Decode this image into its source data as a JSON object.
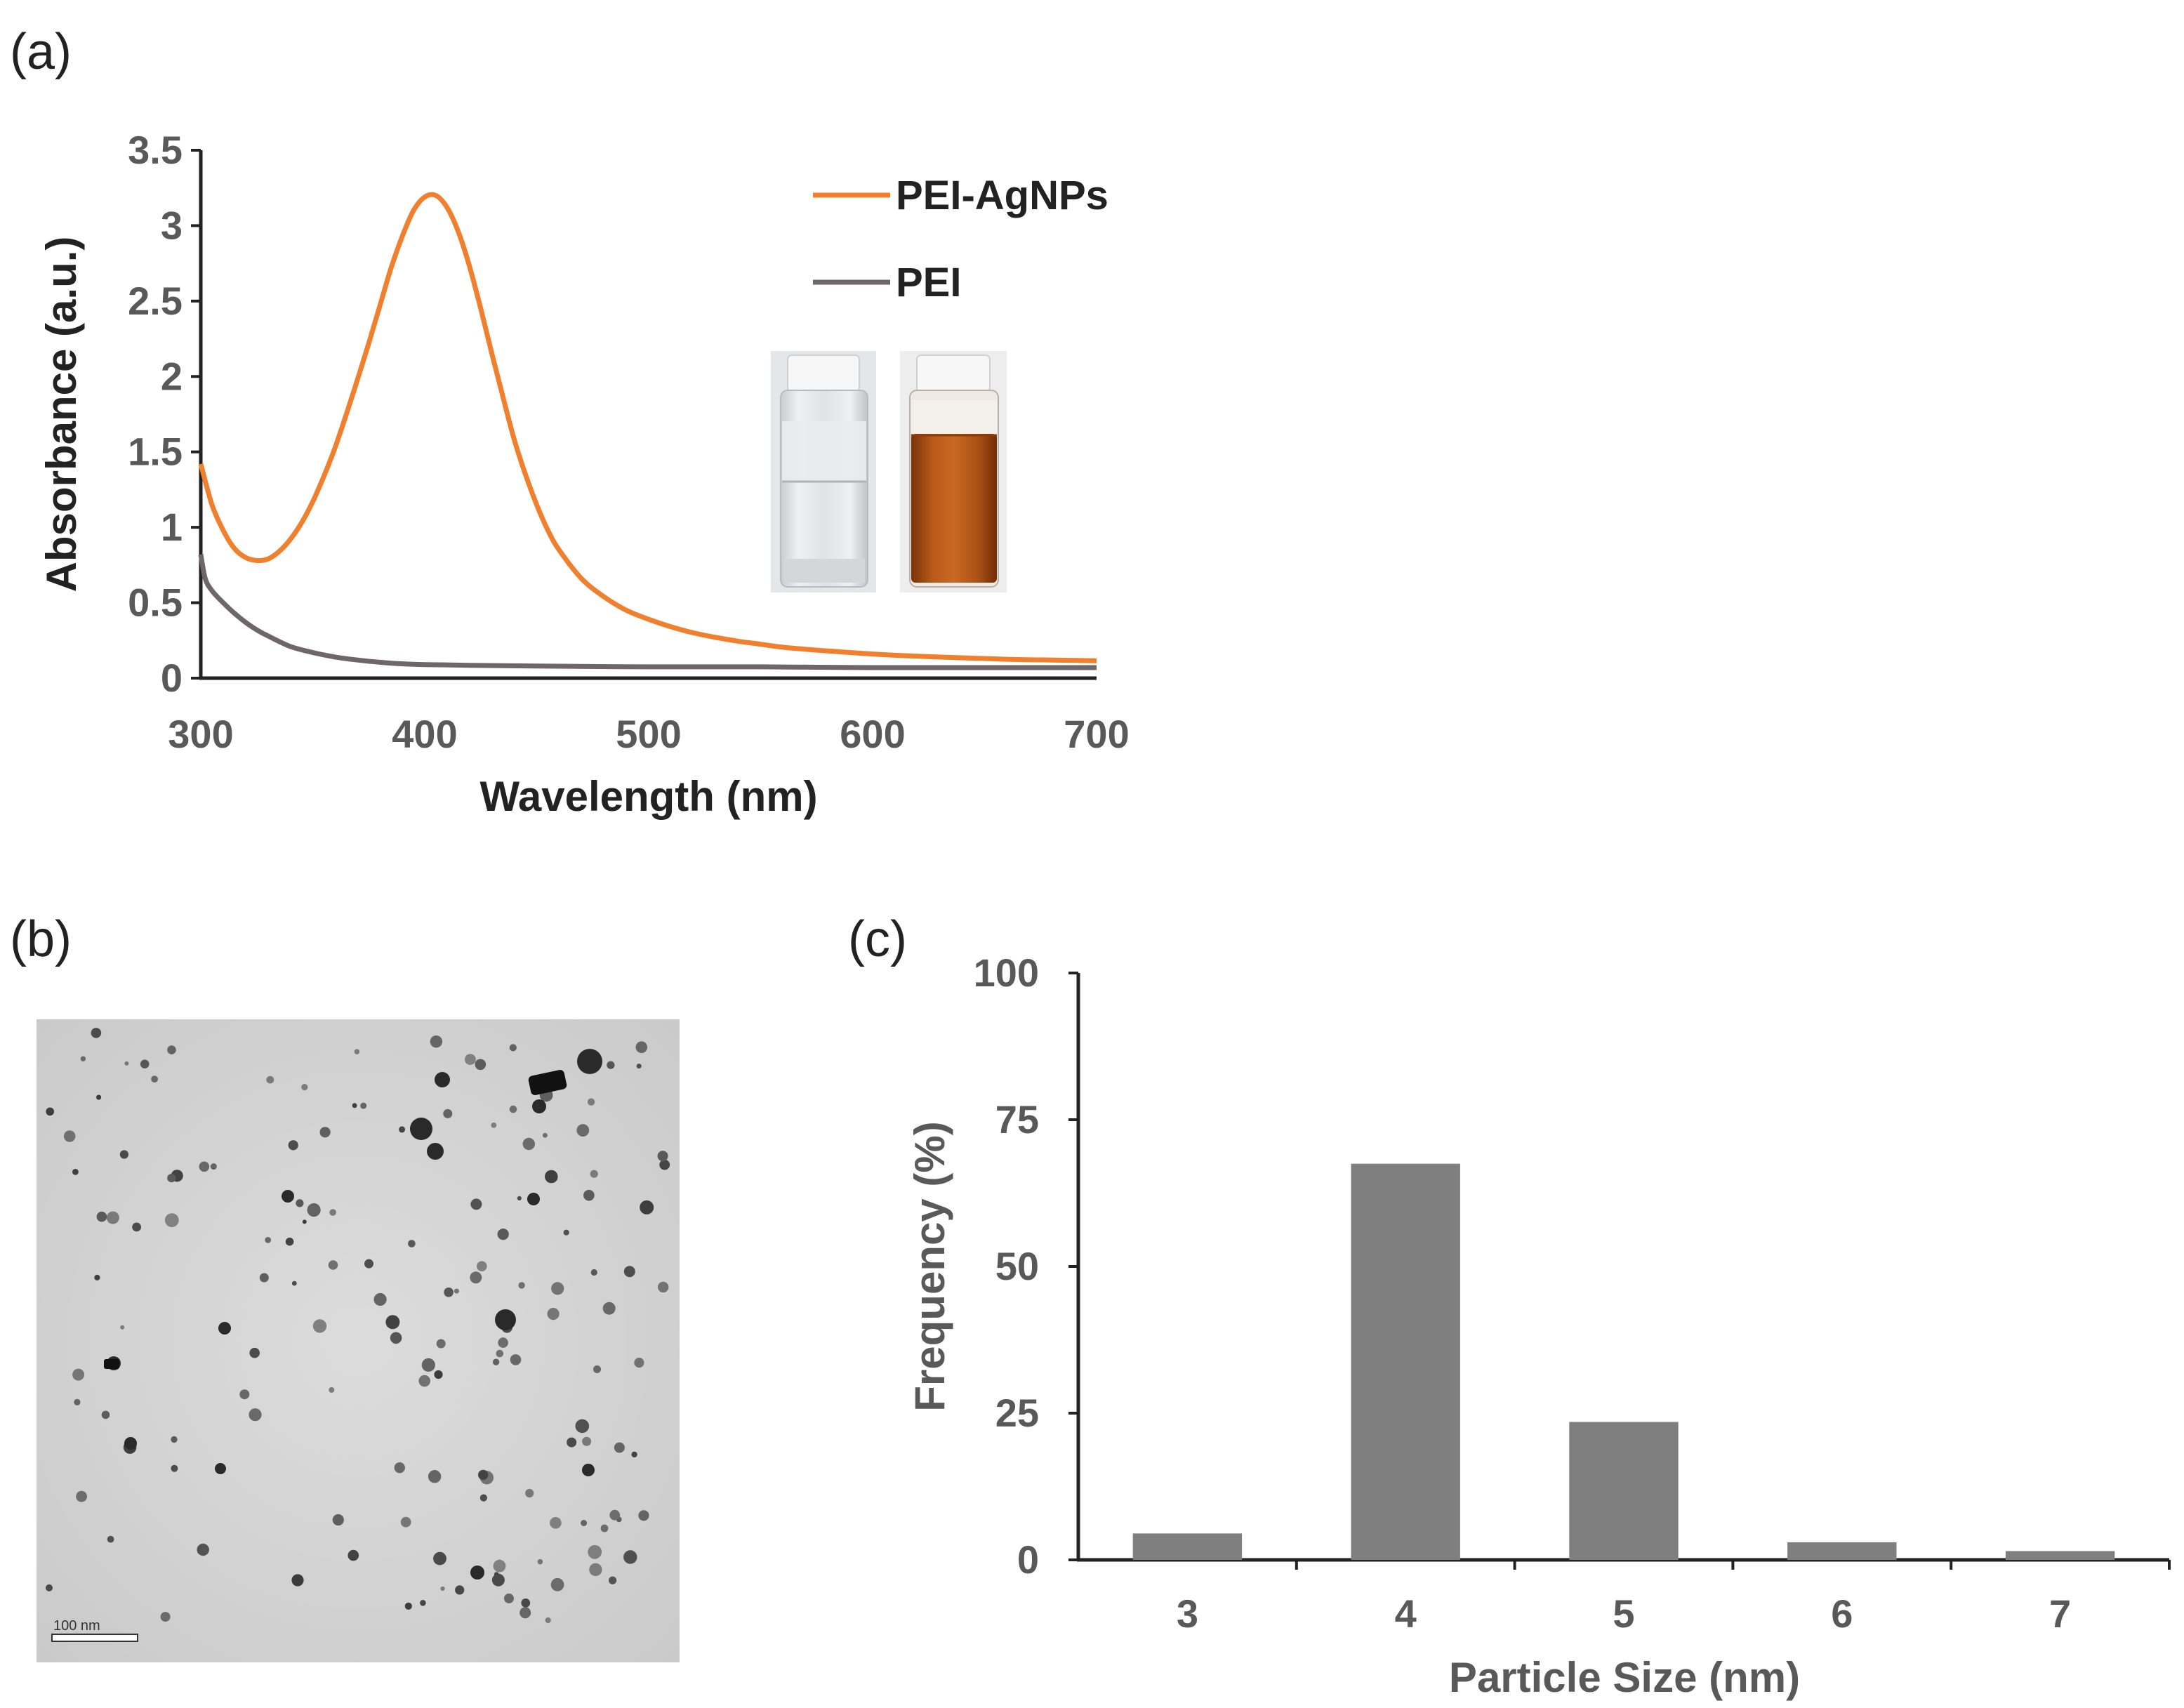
{
  "panels": {
    "a": "(a)",
    "b": "(b)",
    "c": "(c)"
  },
  "colors": {
    "pei_agnps": "#F07F2E",
    "pei": "#6E6669",
    "bar": "#7F7F7F",
    "axis": "#222222",
    "tick_text": "#595959"
  },
  "chart_data": [
    {
      "id": "a",
      "type": "line",
      "xlabel": "Wavelength (nm)",
      "ylabel": "Absorbance (a.u.)",
      "xlim": [
        300,
        700
      ],
      "ylim": [
        0,
        3.5
      ],
      "xticks": [
        300,
        400,
        500,
        600,
        700
      ],
      "yticks": [
        0,
        0.5,
        1,
        1.5,
        2,
        2.5,
        3,
        3.5
      ],
      "ytick_labels": [
        "0",
        "0.5",
        "1",
        "1.5",
        "2",
        "2.5",
        "3",
        "3.5"
      ],
      "legend_position": "top-right",
      "series": [
        {
          "name": "PEI-AgNPs",
          "color": "#F07F2E",
          "x": [
            300,
            305,
            310,
            315,
            320,
            325,
            330,
            335,
            340,
            345,
            350,
            355,
            360,
            365,
            370,
            375,
            380,
            385,
            390,
            395,
            400,
            405,
            410,
            415,
            420,
            425,
            430,
            435,
            440,
            445,
            450,
            455,
            460,
            470,
            480,
            490,
            500,
            510,
            520,
            530,
            540,
            550,
            560,
            580,
            600,
            620,
            640,
            660,
            680,
            700
          ],
          "y": [
            1.42,
            1.15,
            0.98,
            0.86,
            0.8,
            0.78,
            0.79,
            0.84,
            0.92,
            1.03,
            1.17,
            1.34,
            1.53,
            1.75,
            1.98,
            2.22,
            2.47,
            2.72,
            2.93,
            3.1,
            3.19,
            3.2,
            3.12,
            2.96,
            2.73,
            2.45,
            2.15,
            1.86,
            1.58,
            1.35,
            1.15,
            0.98,
            0.85,
            0.66,
            0.54,
            0.45,
            0.39,
            0.34,
            0.3,
            0.27,
            0.245,
            0.225,
            0.205,
            0.18,
            0.16,
            0.145,
            0.135,
            0.125,
            0.12,
            0.115
          ]
        },
        {
          "name": "PEI",
          "color": "#6E6669",
          "x": [
            300,
            302,
            305,
            310,
            315,
            320,
            325,
            330,
            340,
            350,
            360,
            370,
            380,
            390,
            400,
            420,
            450,
            500,
            550,
            600,
            650,
            700
          ],
          "y": [
            0.82,
            0.66,
            0.58,
            0.5,
            0.43,
            0.37,
            0.32,
            0.28,
            0.21,
            0.17,
            0.14,
            0.12,
            0.105,
            0.095,
            0.09,
            0.085,
            0.08,
            0.075,
            0.075,
            0.07,
            0.07,
            0.07
          ]
        }
      ]
    },
    {
      "id": "c",
      "type": "bar",
      "xlabel": "Particle Size (nm)",
      "ylabel": "Frequency (%)",
      "categories": [
        "3",
        "4",
        "5",
        "6",
        "7"
      ],
      "values": [
        4.5,
        67.5,
        23.5,
        3.0,
        1.5
      ],
      "ylim": [
        0,
        100
      ],
      "yticks": [
        0,
        25,
        50,
        75,
        100
      ],
      "ytick_labels": [
        "0",
        "25",
        "50",
        "75",
        "100"
      ]
    }
  ],
  "tem": {
    "scale_label": "100 nm"
  }
}
